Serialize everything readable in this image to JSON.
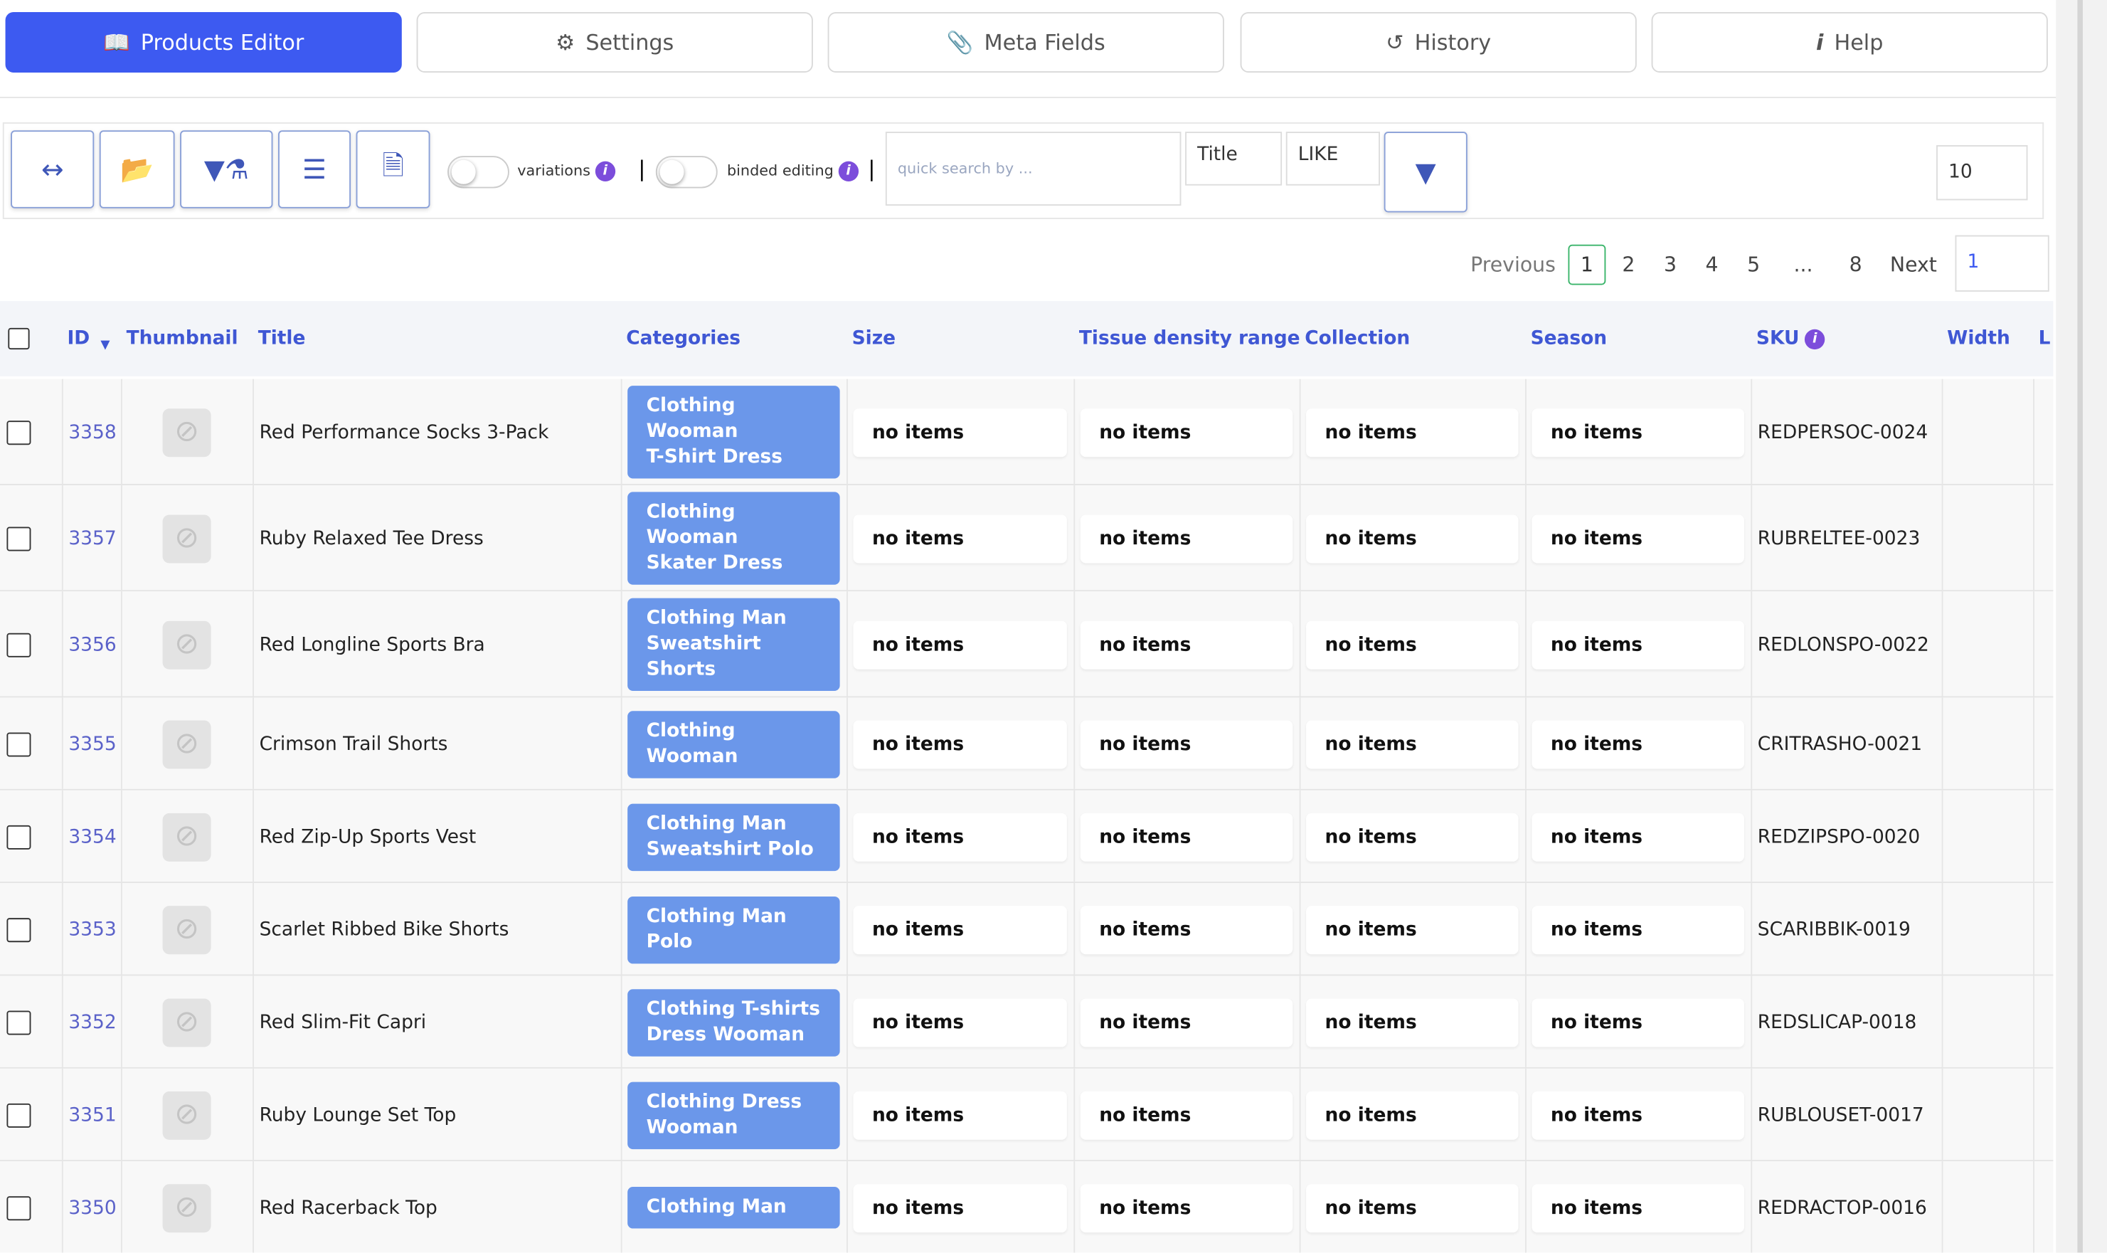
{
  "tabs": [
    "Products Editor",
    "Settings",
    "Meta Fields",
    "History",
    "Help"
  ],
  "toolbar": {
    "variations": "variations",
    "binded_editing": "binded editing",
    "search_placeholder": "quick search by ...",
    "search_field": "Title",
    "search_operator": "LIKE",
    "per_page": "10"
  },
  "pagination": {
    "previous": "Previous",
    "pages": [
      "1",
      "2",
      "3",
      "4",
      "5",
      "...",
      "8"
    ],
    "next": "Next",
    "goto": "1"
  },
  "table": {
    "columns": [
      "ID",
      "Thumbnail",
      "Title",
      "Categories",
      "Size",
      "Tissue density range",
      "Collection",
      "Season",
      "SKU",
      "Width",
      "L"
    ],
    "rows": [
      {
        "id": "3358",
        "title": "Red Performance Socks 3-Pack",
        "categories": [
          "Clothing",
          "Wooman",
          "T-Shirt Dress"
        ],
        "size": "no items",
        "tissue": "no items",
        "collection": "no items",
        "season": "no items",
        "sku": "REDPERSOC-0024"
      },
      {
        "id": "3357",
        "title": "Ruby Relaxed Tee Dress",
        "categories": [
          "Clothing",
          "Wooman",
          "Skater Dress"
        ],
        "size": "no items",
        "tissue": "no items",
        "collection": "no items",
        "season": "no items",
        "sku": "RUBRELTEE-0023"
      },
      {
        "id": "3356",
        "title": "Red Longline Sports Bra",
        "categories": [
          "Clothing Man",
          "Sweatshirt",
          "Shorts"
        ],
        "size": "no items",
        "tissue": "no items",
        "collection": "no items",
        "season": "no items",
        "sku": "REDLONSPO-0022"
      },
      {
        "id": "3355",
        "title": "Crimson Trail Shorts",
        "categories": [
          "Clothing",
          "Wooman"
        ],
        "size": "no items",
        "tissue": "no items",
        "collection": "no items",
        "season": "no items",
        "sku": "CRITRASHO-0021"
      },
      {
        "id": "3354",
        "title": "Red Zip-Up Sports Vest",
        "categories": [
          "Clothing Man",
          "Sweatshirt Polo"
        ],
        "size": "no items",
        "tissue": "no items",
        "collection": "no items",
        "season": "no items",
        "sku": "REDZIPSPO-0020"
      },
      {
        "id": "3353",
        "title": "Scarlet Ribbed Bike Shorts",
        "categories": [
          "Clothing Man",
          "Polo"
        ],
        "size": "no items",
        "tissue": "no items",
        "collection": "no items",
        "season": "no items",
        "sku": "SCARIBBIK-0019"
      },
      {
        "id": "3352",
        "title": "Red Slim-Fit Capri",
        "categories": [
          "Clothing T-shirts",
          "Dress Wooman"
        ],
        "size": "no items",
        "tissue": "no items",
        "collection": "no items",
        "season": "no items",
        "sku": "REDSLICAP-0018"
      },
      {
        "id": "3351",
        "title": "Ruby Lounge Set Top",
        "categories": [
          "Clothing Dress",
          "Wooman"
        ],
        "size": "no items",
        "tissue": "no items",
        "collection": "no items",
        "season": "no items",
        "sku": "RUBLOUSET-0017"
      },
      {
        "id": "3350",
        "title": "Red Racerback Top",
        "categories": [
          "Clothing Man"
        ],
        "size": "no items",
        "tissue": "no items",
        "collection": "no items",
        "season": "no items",
        "sku": "REDRACTOP-0016"
      }
    ]
  }
}
